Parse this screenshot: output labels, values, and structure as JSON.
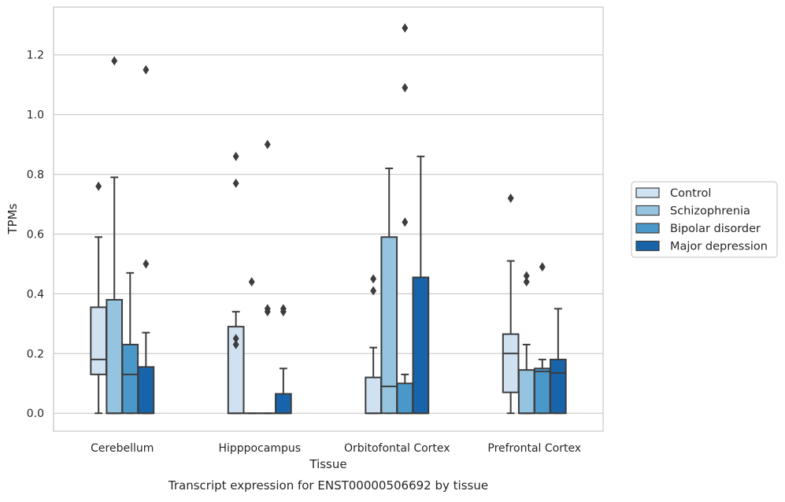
{
  "caption": "Transcript expression for ENST00000506692 by tissue",
  "chart_data": {
    "type": "boxplot",
    "xlabel": "Tissue",
    "ylabel": "TPMs",
    "ylim": [
      -0.06,
      1.36
    ],
    "yticks": [
      0.0,
      0.2,
      0.4,
      0.6,
      0.8,
      1.0,
      1.2
    ],
    "ytick_labels": [
      "0.0",
      "0.2",
      "0.4",
      "0.6",
      "0.8",
      "1.0",
      "1.2"
    ],
    "grid": "horizontal",
    "legend_position": "outside-right",
    "categories": [
      "Cerebellum",
      "Hipppocampus",
      "Orbitofontal Cortex",
      "Prefrontal Cortex"
    ],
    "series": [
      {
        "name": "Control",
        "color": "#d0e1f2",
        "boxes": [
          {
            "whislo": 0.0,
            "q1": 0.13,
            "med": 0.18,
            "q3": 0.355,
            "whishi": 0.59,
            "fliers": [
              0.76
            ]
          },
          {
            "whislo": 0.0,
            "q1": 0.0,
            "med": 0.0,
            "q3": 0.29,
            "whishi": 0.34,
            "fliers": [
              0.23,
              0.25,
              0.77,
              0.86
            ]
          },
          {
            "whislo": 0.0,
            "q1": 0.0,
            "med": 0.0,
            "q3": 0.12,
            "whishi": 0.22,
            "fliers": [
              0.41,
              0.45
            ]
          },
          {
            "whislo": 0.0,
            "q1": 0.07,
            "med": 0.2,
            "q3": 0.265,
            "whishi": 0.51,
            "fliers": [
              0.72
            ]
          }
        ]
      },
      {
        "name": "Schizophrenia",
        "color": "#94c4df",
        "boxes": [
          {
            "whislo": 0.0,
            "q1": 0.0,
            "med": 0.0,
            "q3": 0.38,
            "whishi": 0.79,
            "fliers": [
              1.18
            ]
          },
          {
            "whislo": 0.0,
            "q1": 0.0,
            "med": 0.0,
            "q3": 0.0,
            "whishi": 0.0,
            "fliers": [
              0.44
            ]
          },
          {
            "whislo": 0.0,
            "q1": 0.0,
            "med": 0.09,
            "q3": 0.59,
            "whishi": 0.82,
            "fliers": []
          },
          {
            "whislo": 0.0,
            "q1": 0.0,
            "med": 0.0,
            "q3": 0.145,
            "whishi": 0.23,
            "fliers": [
              0.44,
              0.46
            ]
          }
        ]
      },
      {
        "name": "Bipolar disorder",
        "color": "#4a98c9",
        "boxes": [
          {
            "whislo": 0.0,
            "q1": 0.0,
            "med": 0.13,
            "q3": 0.23,
            "whishi": 0.47,
            "fliers": []
          },
          {
            "whislo": 0.0,
            "q1": 0.0,
            "med": 0.0,
            "q3": 0.0,
            "whishi": 0.0,
            "fliers": [
              0.34,
              0.35,
              0.9
            ]
          },
          {
            "whislo": 0.0,
            "q1": 0.0,
            "med": 0.0,
            "q3": 0.1,
            "whishi": 0.13,
            "fliers": [
              0.64,
              1.09,
              1.29
            ]
          },
          {
            "whislo": 0.0,
            "q1": 0.0,
            "med": 0.14,
            "q3": 0.15,
            "whishi": 0.18,
            "fliers": [
              0.49
            ]
          }
        ]
      },
      {
        "name": "Major depression",
        "color": "#1764ab",
        "boxes": [
          {
            "whislo": 0.0,
            "q1": 0.0,
            "med": 0.0,
            "q3": 0.155,
            "whishi": 0.27,
            "fliers": [
              0.5,
              1.15
            ]
          },
          {
            "whislo": 0.0,
            "q1": 0.0,
            "med": 0.0,
            "q3": 0.065,
            "whishi": 0.15,
            "fliers": [
              0.34,
              0.35
            ]
          },
          {
            "whislo": 0.0,
            "q1": 0.0,
            "med": 0.0,
            "q3": 0.455,
            "whishi": 0.86,
            "fliers": []
          },
          {
            "whislo": 0.0,
            "q1": 0.0,
            "med": 0.135,
            "q3": 0.18,
            "whishi": 0.35,
            "fliers": []
          }
        ]
      }
    ]
  }
}
